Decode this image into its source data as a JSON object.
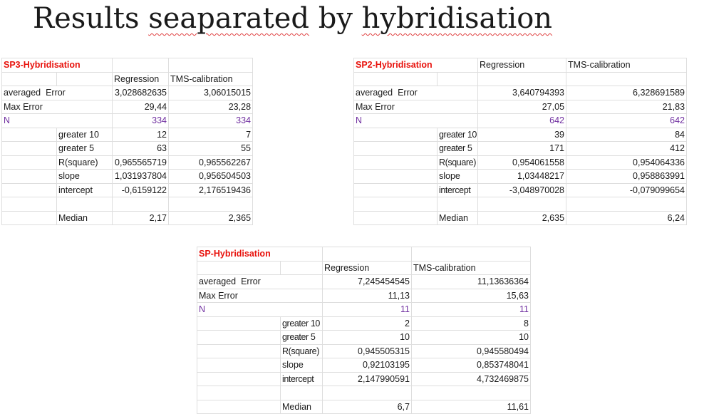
{
  "title_words": [
    "Results",
    "seaparated",
    "by",
    "hybridisation"
  ],
  "tables": [
    {
      "header": "SP3-Hybridisation",
      "col_regression": "Regression",
      "col_tms": "TMS-calibration",
      "rows": {
        "avg_error": {
          "label": "averaged  Error",
          "reg": "3,028682635",
          "tms": "3,06015015"
        },
        "max_error": {
          "label": "Max Error",
          "reg": "29,44",
          "tms": "23,28"
        },
        "n": {
          "label": "N",
          "reg": "334",
          "tms": "334"
        },
        "greater10": {
          "label": "greater 10",
          "reg": "12",
          "tms": "7"
        },
        "greater5": {
          "label": "greater 5",
          "reg": "63",
          "tms": "55"
        },
        "rsquare": {
          "label": "R(square)",
          "reg": "0,965565719",
          "tms": "0,965562267"
        },
        "slope": {
          "label": "slope",
          "reg": "1,031937804",
          "tms": "0,956504503"
        },
        "intercept": {
          "label": "intercept",
          "reg": "-0,6159122",
          "tms": "2,176519436"
        },
        "median": {
          "label": "Median",
          "reg": "2,17",
          "tms": "2,365"
        }
      }
    },
    {
      "header": "SP2-Hybridisation",
      "col_regression": "Regression",
      "col_tms": "TMS-calibration",
      "rows": {
        "avg_error": {
          "label": "averaged  Error",
          "reg": "3,640794393",
          "tms": "6,328691589"
        },
        "max_error": {
          "label": "Max Error",
          "reg": "27,05",
          "tms": "21,83"
        },
        "n": {
          "label": "N",
          "reg": "642",
          "tms": "642"
        },
        "greater10": {
          "label": "greater 10",
          "reg": "39",
          "tms": "84"
        },
        "greater5": {
          "label": "greater 5",
          "reg": "171",
          "tms": "412"
        },
        "rsquare": {
          "label": "R(square)",
          "reg": "0,954061558",
          "tms": "0,954064336"
        },
        "slope": {
          "label": "slope",
          "reg": "1,03448217",
          "tms": "0,958863991"
        },
        "intercept": {
          "label": "intercept",
          "reg": "-3,048970028",
          "tms": "-0,079099654"
        },
        "median": {
          "label": "Median",
          "reg": "2,635",
          "tms": "6,24"
        }
      }
    },
    {
      "header": "SP-Hybridisation",
      "col_regression": "Regression",
      "col_tms": "TMS-calibration",
      "rows": {
        "avg_error": {
          "label": "averaged  Error",
          "reg": "7,245454545",
          "tms": "11,13636364"
        },
        "max_error": {
          "label": "Max Error",
          "reg": "11,13",
          "tms": "15,63"
        },
        "n": {
          "label": "N",
          "reg": "11",
          "tms": "11"
        },
        "greater10": {
          "label": "greater 10",
          "reg": "2",
          "tms": "8"
        },
        "greater5": {
          "label": "greater 5",
          "reg": "10",
          "tms": "10"
        },
        "rsquare": {
          "label": "R(square)",
          "reg": "0,945505315",
          "tms": "0,945580494"
        },
        "slope": {
          "label": "slope",
          "reg": "0,92103195",
          "tms": "0,853748041"
        },
        "intercept": {
          "label": "intercept",
          "reg": "2,147990591",
          "tms": "4,732469875"
        },
        "median": {
          "label": "Median",
          "reg": "6,7",
          "tms": "11,61"
        }
      }
    }
  ],
  "colors": {
    "header_red": "#e8120c",
    "n_purple": "#7030a0",
    "gridline": "#dedede",
    "spellcheck_red": "#e04040"
  }
}
